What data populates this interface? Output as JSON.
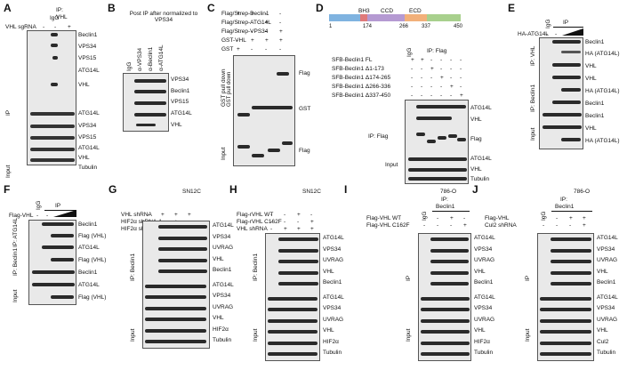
{
  "panels": {
    "A": {
      "letter": "A",
      "col_igg": "IgG",
      "col_ip": "IP:",
      "col_vhl": "VHL",
      "condition": "VHL sgRNA",
      "marks": [
        "-",
        "-",
        "+"
      ],
      "group_ip": "IP",
      "group_input": "Input",
      "rows": [
        "Beclin1",
        "VPS34",
        "VPS15",
        "ATG14L",
        "VHL",
        "ATG14L",
        "VPS34",
        "VPS15",
        "ATG14L",
        "VHL",
        "Tubulin"
      ]
    },
    "B": {
      "letter": "B",
      "title": "Post IP after normalized to VPS34",
      "cols": [
        "IgG",
        "α-VPS34",
        "α-Beclin1",
        "α-ATG14L"
      ],
      "rows": [
        "VPS34",
        "Beclin1",
        "VPS15",
        "ATG14L",
        "VHL"
      ]
    },
    "C": {
      "letter": "C",
      "conditions": [
        {
          "label": "Flag/Strep-Beclin1",
          "marks": [
            "+",
            "+",
            "-",
            "-"
          ]
        },
        {
          "label": "Flag/Strep-ATG14L",
          "marks": [
            "-",
            "-",
            "+",
            "-"
          ]
        },
        {
          "label": "Flag/Strep-VPS34",
          "marks": [
            "-",
            "-",
            "-",
            "+"
          ]
        },
        {
          "label": "GST-VHL",
          "marks": [
            "-",
            "+",
            "+",
            "+"
          ]
        },
        {
          "label": "GST",
          "marks": [
            "+",
            "-",
            "-",
            "-"
          ]
        }
      ],
      "group_gst": "GST pull down",
      "group_input": "Input",
      "rows": [
        "Flag",
        "GST",
        "Flag"
      ]
    },
    "D": {
      "letter": "D",
      "domains": [
        "BH3",
        "CCD",
        "ECD"
      ],
      "ticks": [
        "1",
        "174",
        "266",
        "337",
        "450"
      ],
      "conditions": [
        {
          "label": "SFB-Beclin1 FL",
          "marks": [
            "+",
            "+",
            "-",
            "-",
            "-",
            "-"
          ]
        },
        {
          "label": "SFB-Beclin1 Δ1-173",
          "marks": [
            "-",
            "-",
            "+",
            "-",
            "-",
            "-"
          ]
        },
        {
          "label": "SFB-Beclin1 Δ174-265",
          "marks": [
            "-",
            "-",
            "-",
            "+",
            "-",
            "-"
          ]
        },
        {
          "label": "SFB-Beclin1 Δ266-336",
          "marks": [
            "-",
            "-",
            "-",
            "-",
            "+",
            "-"
          ]
        },
        {
          "label": "SFB-Beclin1 Δ337-450",
          "marks": [
            "-",
            "-",
            "-",
            "-",
            "-",
            "+"
          ]
        }
      ],
      "col_igg": "IgG",
      "col_ip": "IP: Flag",
      "group_ip": "IP: Flag",
      "group_input": "Input",
      "rows": [
        "ATG14L",
        "VHL",
        "Flag",
        "ATG14L",
        "VHL",
        "Tubulin"
      ]
    },
    "E": {
      "letter": "E",
      "condition": "HA-ATG14L",
      "marks": [
        "-",
        "-"
      ],
      "col_igg": "IgG",
      "col_ip": "IP",
      "group_ip_vhl": "IP: VHL",
      "group_ip_beclin": "IP: Beclin1",
      "group_input": "Input",
      "rows": [
        "Beclin1",
        "HA (ATG14L)",
        "VHL",
        "VHL",
        "HA (ATG14L)",
        "Beclin1",
        "Beclin1",
        "VHL",
        "HA (ATG14L)"
      ]
    },
    "F": {
      "letter": "F",
      "condition": "Flag-VHL",
      "marks": [
        "-",
        "-"
      ],
      "col_igg": "IgG",
      "col_ip": "IP",
      "group_ip_atg": "IP: ATG14L",
      "group_ip_beclin": "IP: Beclin1",
      "group_input": "Input",
      "rows": [
        "Beclin1",
        "Flag (VHL)",
        "ATG14L",
        "Flag (VHL)",
        "Beclin1",
        "ATG14L",
        "Flag (VHL)"
      ]
    },
    "G": {
      "letter": "G",
      "cell": "SN12C",
      "conditions": [
        {
          "label": "VHL shRNA",
          "marks": [
            "-",
            "+",
            "+",
            "+"
          ]
        },
        {
          "label": "HIF2α shRNA-1",
          "marks": [
            "-",
            "-",
            "+",
            "-"
          ]
        },
        {
          "label": "HIF2α shRNA-2",
          "marks": [
            "-",
            "-",
            "-",
            "+"
          ]
        }
      ],
      "group_ip": "IP: Beclin1",
      "group_input": "Input",
      "rows": [
        "ATG14L",
        "VPS34",
        "UVRAG",
        "VHL",
        "Beclin1",
        "ATG14L",
        "VPS34",
        "UVRAG",
        "VHL",
        "HIF2α",
        "Tubulin"
      ]
    },
    "H": {
      "letter": "H",
      "cell": "SN12C",
      "conditions": [
        {
          "label": "Flag-rVHL WT",
          "marks": [
            "-",
            "-",
            "+",
            "-"
          ]
        },
        {
          "label": "Flag-rVHL C162F",
          "marks": [
            "-",
            "-",
            "-",
            "+"
          ]
        },
        {
          "label": "VHL shRNA",
          "marks": [
            "-",
            "+",
            "+",
            "+"
          ]
        }
      ],
      "group_ip": "IP: Beclin1",
      "group_input": "Input",
      "rows": [
        "ATG14L",
        "VPS34",
        "UVRAG",
        "VHL",
        "Beclin1",
        "ATG14L",
        "VPS34",
        "UVRAG",
        "VHL",
        "HIF2α",
        "Tubulin"
      ]
    },
    "I": {
      "letter": "I",
      "cell": "786-O",
      "conditions": [
        {
          "label": "Flag-VHL WT",
          "marks": [
            "-",
            "-",
            "+",
            "-"
          ]
        },
        {
          "label": "Flag-VHL C162F",
          "marks": [
            "-",
            "-",
            "-",
            "+"
          ]
        }
      ],
      "col_igg": "IgG",
      "col_ip": "IP:",
      "col_target": "Beclin1",
      "group_ip": "IP",
      "group_input": "Input",
      "rows": [
        "ATG14L",
        "VPS34",
        "UVRAG",
        "VHL",
        "Beclin1",
        "ATG14L",
        "VPS34",
        "UVRAG",
        "VHL",
        "HIF2α",
        "Tubulin"
      ]
    },
    "J": {
      "letter": "J",
      "cell": "786-O",
      "conditions": [
        {
          "label": "Flag-VHL",
          "marks": [
            "-",
            "-",
            "+",
            "+"
          ]
        },
        {
          "label": "Cul2 shRNA",
          "marks": [
            "-",
            "-",
            "-",
            "+"
          ]
        }
      ],
      "col_igg": "IgG",
      "col_ip": "IP:",
      "col_target": "Beclin1",
      "group_ip": "IP",
      "group_input": "Input",
      "rows": [
        "ATG14L",
        "VPS34",
        "UVRAG",
        "VHL",
        "Beclin1",
        "ATG14L",
        "VPS34",
        "UVRAG",
        "VHL",
        "Cul2",
        "Tubulin"
      ]
    }
  }
}
